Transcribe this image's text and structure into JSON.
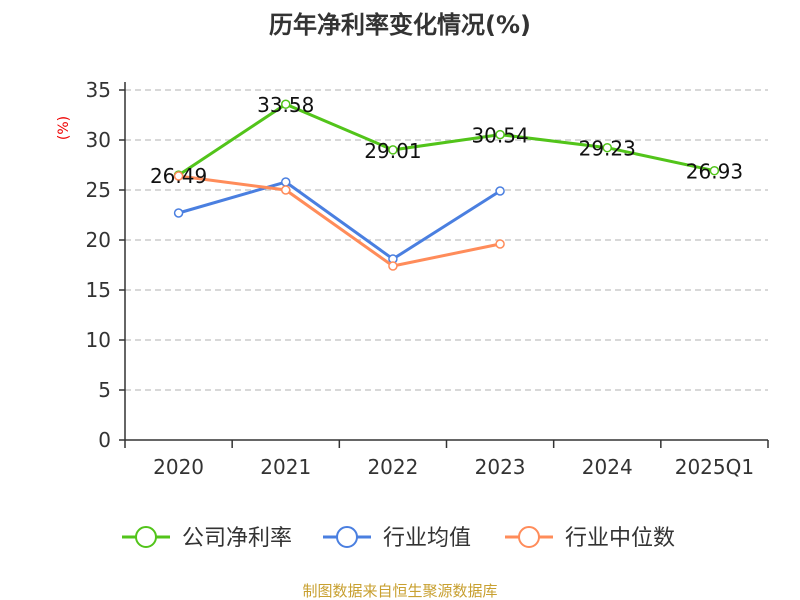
{
  "chart_data": {
    "type": "line",
    "title": "历年净利率变化情况(%)",
    "ylabel": "(%)",
    "xlabel": "",
    "categories": [
      "2020",
      "2021",
      "2022",
      "2023",
      "2024",
      "2025Q1"
    ],
    "ylim": [
      0,
      35
    ],
    "yticks": [
      0,
      5,
      10,
      15,
      20,
      25,
      30,
      35
    ],
    "grid": true,
    "legend_position": "bottom",
    "series": [
      {
        "name": "公司净利率",
        "color": "#52c41a",
        "values": [
          26.49,
          33.58,
          29.01,
          30.54,
          29.23,
          26.93
        ],
        "labels": [
          "26.49",
          "33.58",
          "29.01",
          "30.54",
          "29.23",
          "26.93"
        ]
      },
      {
        "name": "行业均值",
        "color": "#4a7fe0",
        "values": [
          22.7,
          25.8,
          18.1,
          24.9,
          null,
          null
        ]
      },
      {
        "name": "行业中位数",
        "color": "#ff8c5a",
        "values": [
          26.4,
          25.0,
          17.4,
          19.6,
          null,
          null
        ]
      }
    ],
    "source": "制图数据来自恒生聚源数据库"
  }
}
